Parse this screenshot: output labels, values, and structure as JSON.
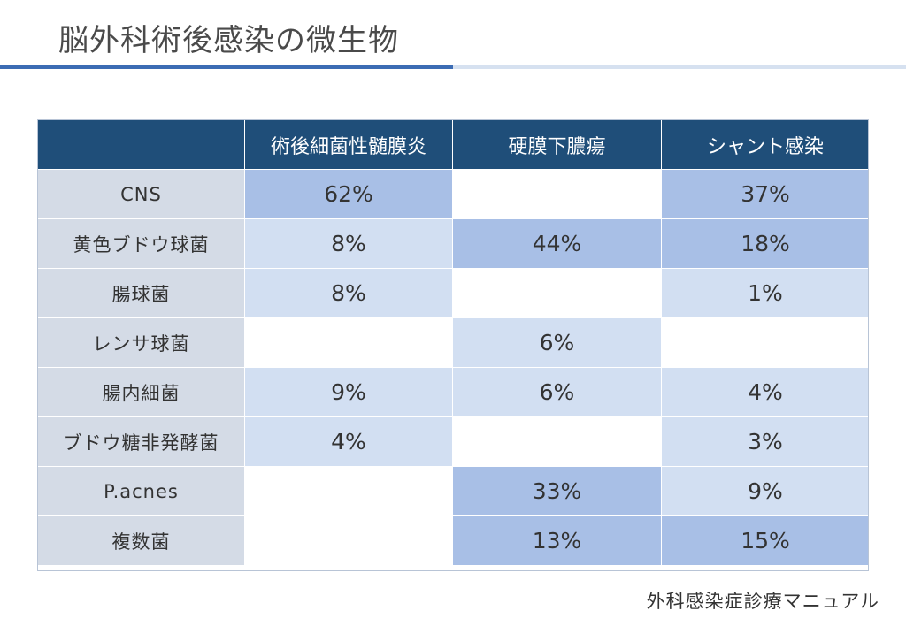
{
  "title": "脳外科術後感染の微生物",
  "table": {
    "corner": "",
    "columns": [
      "術後細菌性髄膜炎",
      "硬膜下膿瘍",
      "シャント感染"
    ],
    "rows": [
      {
        "label": "CNS",
        "cells": [
          {
            "text": "62%",
            "value": 62,
            "level": "high"
          },
          {
            "text": "",
            "value": null,
            "level": "none"
          },
          {
            "text": "37%",
            "value": 37,
            "level": "high"
          }
        ]
      },
      {
        "label": "黄色ブドウ球菌",
        "cells": [
          {
            "text": "8%",
            "value": 8,
            "level": "mid"
          },
          {
            "text": "44%",
            "value": 44,
            "level": "high"
          },
          {
            "text": "18%",
            "value": 18,
            "level": "high"
          }
        ]
      },
      {
        "label": "腸球菌",
        "cells": [
          {
            "text": "8%",
            "value": 8,
            "level": "mid"
          },
          {
            "text": "",
            "value": null,
            "level": "none"
          },
          {
            "text": "1%",
            "value": 1,
            "level": "mid"
          }
        ]
      },
      {
        "label": "レンサ球菌",
        "cells": [
          {
            "text": "",
            "value": null,
            "level": "none"
          },
          {
            "text": "6%",
            "value": 6,
            "level": "mid"
          },
          {
            "text": "",
            "value": null,
            "level": "none"
          }
        ]
      },
      {
        "label": "腸内細菌",
        "cells": [
          {
            "text": "9%",
            "value": 9,
            "level": "mid"
          },
          {
            "text": "6%",
            "value": 6,
            "level": "mid"
          },
          {
            "text": "4%",
            "value": 4,
            "level": "mid"
          }
        ]
      },
      {
        "label": "ブドウ糖非発酵菌",
        "cells": [
          {
            "text": "4%",
            "value": 4,
            "level": "mid"
          },
          {
            "text": "",
            "value": null,
            "level": "none"
          },
          {
            "text": "3%",
            "value": 3,
            "level": "mid"
          }
        ]
      },
      {
        "label": "P.acnes",
        "cells": [
          {
            "text": "",
            "value": null,
            "level": "none"
          },
          {
            "text": "33%",
            "value": 33,
            "level": "high"
          },
          {
            "text": "9%",
            "value": 9,
            "level": "mid"
          }
        ]
      },
      {
        "label": "複数菌",
        "cells": [
          {
            "text": "",
            "value": null,
            "level": "none"
          },
          {
            "text": "13%",
            "value": 13,
            "level": "high"
          },
          {
            "text": "15%",
            "value": 15,
            "level": "high"
          }
        ]
      }
    ]
  },
  "source": "外科感染症診療マニュアル",
  "colors": {
    "header_bg": "#1f4e79",
    "label_bg": "#d4dbe6",
    "cell_high": "#a8bfe6",
    "cell_mid": "#d2dff2",
    "cell_none": "#ffffff",
    "title_rule": "#3c6cb4"
  }
}
